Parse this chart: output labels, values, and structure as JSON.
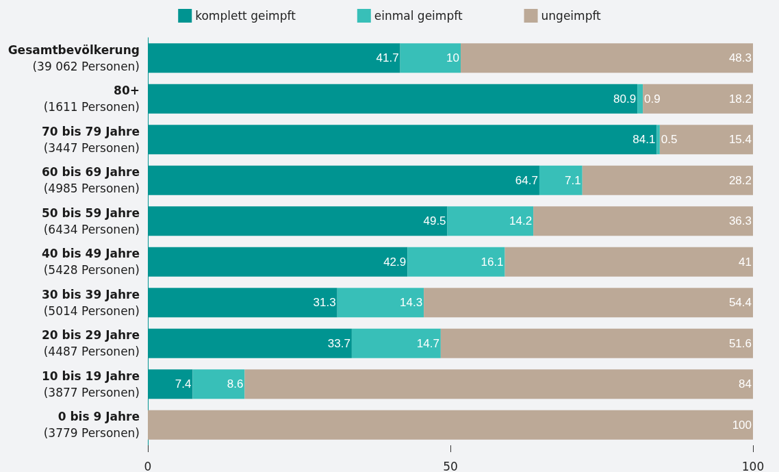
{
  "chart_data": {
    "type": "bar",
    "orientation": "horizontal",
    "stacked": true,
    "legend": "top",
    "categories": [
      "Gesamtbevölkerung\n(39 062 Personen)",
      "80+\n(1611 Personen)",
      "70 bis 79 Jahre\n(3447 Personen)",
      "60 bis 69 Jahre\n(4985 Personen)",
      "50 bis 59 Jahre\n(6434 Personen)",
      "40 bis 49 Jahre\n(5428 Personen)",
      "30 bis 39 Jahre\n(5014 Personen)",
      "20 bis 29 Jahre\n(4487 Personen)",
      "10 bis 19 Jahre\n(3877 Personen)",
      "0 bis 9 Jahre\n(3779 Personen)"
    ],
    "series": [
      {
        "name": "komplett geimpft",
        "color": "#009491",
        "values": [
          41.7,
          80.9,
          84.1,
          64.7,
          49.5,
          42.9,
          31.3,
          33.7,
          7.4,
          0
        ],
        "value_labels": [
          "41.7",
          "80.9",
          "84.1",
          "64.7",
          "49.5",
          "42.9",
          "31.3",
          "33.7",
          "7.4",
          null
        ]
      },
      {
        "name": "einmal geimpft",
        "color": "#38bfb8",
        "values": [
          10,
          0.9,
          0.5,
          7.1,
          14.2,
          16.1,
          14.3,
          14.7,
          8.6,
          0
        ],
        "value_labels": [
          "10",
          "0.9",
          "0.5",
          "7.1",
          "14.2",
          "16.1",
          "14.3",
          "14.7",
          "8.6",
          null
        ]
      },
      {
        "name": "ungeimpft",
        "color": "#bca997",
        "values": [
          48.3,
          18.2,
          15.4,
          28.2,
          36.3,
          41,
          54.4,
          51.6,
          84,
          100
        ],
        "value_labels": [
          "48.3",
          "18.2",
          "15.4",
          "28.2",
          "36.3",
          "41",
          "54.4",
          "51.6",
          "84",
          "100"
        ]
      }
    ],
    "xlim": [
      0,
      100
    ],
    "xticks": [
      0,
      50,
      100
    ],
    "grid": false
  }
}
